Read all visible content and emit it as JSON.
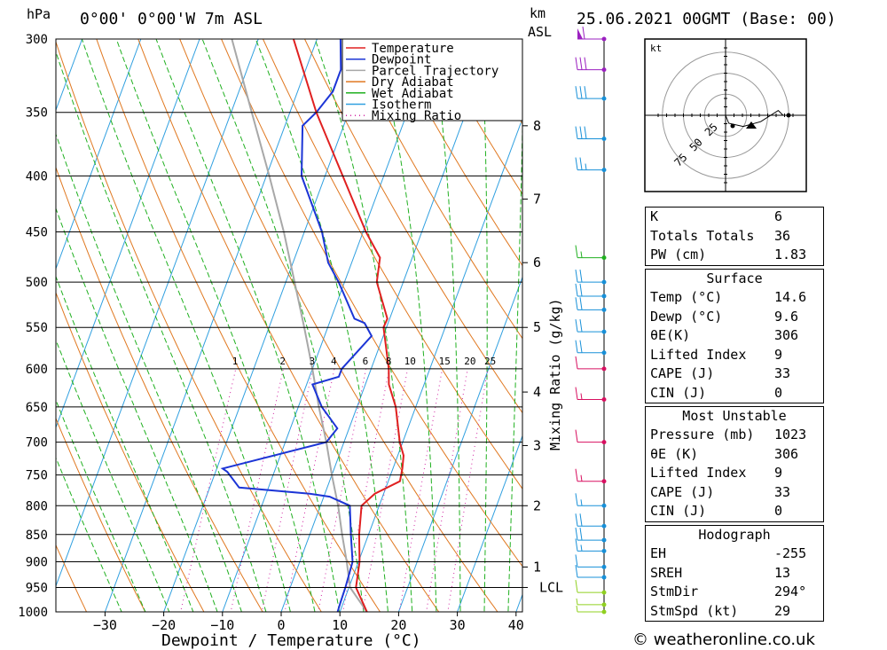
{
  "header": {
    "location": "0°00' 0°00'W 7m ASL",
    "datetime": "25.06.2021 00GMT (Base: 00)",
    "p_unit": "hPa",
    "km_unit": "km",
    "asl_label": "ASL"
  },
  "chart_data": {
    "type": "line",
    "title": "0°00' 0°00'W 7m ASL",
    "xlabel": "Dewpoint / Temperature (°C)",
    "ylabel": "hPa",
    "mixing_ratio_label": "Mixing Ratio (g/kg)",
    "xlim": [
      -40,
      40
    ],
    "ylim": [
      1000,
      300
    ],
    "y_scale": "log",
    "x_ticks": [
      "-30",
      "-20",
      "-10",
      "0",
      "10",
      "20",
      "30",
      "40"
    ],
    "p_ticks": [
      "300",
      "350",
      "400",
      "450",
      "500",
      "550",
      "600",
      "650",
      "700",
      "750",
      "800",
      "850",
      "900",
      "950",
      "1000"
    ],
    "km_ticks": [
      {
        "label": "8",
        "p": 360
      },
      {
        "label": "7",
        "p": 420
      },
      {
        "label": "6",
        "p": 480
      },
      {
        "label": "5",
        "p": 550
      },
      {
        "label": "4",
        "p": 630
      },
      {
        "label": "3",
        "p": 705
      },
      {
        "label": "2",
        "p": 800
      },
      {
        "label": "1",
        "p": 910
      },
      {
        "label": "LCL",
        "p": 950
      }
    ],
    "mixing_ratio_values": [
      "1",
      "2",
      "3",
      "4",
      "6",
      "8",
      "10",
      "15",
      "20",
      "25"
    ],
    "legend": [
      "Temperature",
      "Dewpoint",
      "Parcel Trajectory",
      "Dry Adiabat",
      "Wet Adiabat",
      "Isotherm",
      "Mixing Ratio"
    ],
    "legend_placement": "top-right",
    "colors": {
      "temperature": "#e02020",
      "dewpoint": "#1c35d6",
      "parcel": "#a8a8a8",
      "dry_adiabat": "#e07820",
      "wet_adiabat": "#20b020",
      "isotherm": "#30a0e0",
      "mixing_ratio": "#d020a0"
    },
    "series": [
      {
        "name": "Temperature",
        "points": [
          [
            1000,
            14.6
          ],
          [
            950,
            11.2
          ],
          [
            900,
            10.2
          ],
          [
            850,
            8.4
          ],
          [
            800,
            7.0
          ],
          [
            780,
            8.5
          ],
          [
            760,
            12.0
          ],
          [
            740,
            11.6
          ],
          [
            720,
            11.0
          ],
          [
            700,
            9.5
          ],
          [
            650,
            6.6
          ],
          [
            620,
            4.0
          ],
          [
            600,
            3.0
          ],
          [
            550,
            -0.5
          ],
          [
            540,
            -0.4
          ],
          [
            500,
            -4.5
          ],
          [
            475,
            -5.5
          ],
          [
            450,
            -9.5
          ],
          [
            400,
            -17.0
          ],
          [
            350,
            -25.5
          ],
          [
            300,
            -34.0
          ]
        ]
      },
      {
        "name": "Dewpoint",
        "points": [
          [
            1000,
            9.6
          ],
          [
            980,
            9.5
          ],
          [
            950,
            9.4
          ],
          [
            900,
            9.0
          ],
          [
            850,
            7.0
          ],
          [
            800,
            5.0
          ],
          [
            785,
            1.0
          ],
          [
            780,
            -2.6
          ],
          [
            770,
            -15.0
          ],
          [
            745,
            -18.0
          ],
          [
            740,
            -19.0
          ],
          [
            700,
            -3.0
          ],
          [
            680,
            -2.0
          ],
          [
            650,
            -6.0
          ],
          [
            620,
            -9.0
          ],
          [
            610,
            -5.0
          ],
          [
            600,
            -5.0
          ],
          [
            560,
            -2.0
          ],
          [
            545,
            -4.0
          ],
          [
            540,
            -6.0
          ],
          [
            500,
            -11.0
          ],
          [
            480,
            -14.0
          ],
          [
            450,
            -17.0
          ],
          [
            400,
            -24.0
          ],
          [
            360,
            -27.0
          ],
          [
            350,
            -25.5
          ],
          [
            335,
            -24.0
          ],
          [
            320,
            -24.0
          ],
          [
            300,
            -26.0
          ]
        ]
      },
      {
        "name": "Parcel Trajectory",
        "points": [
          [
            1000,
            14.6
          ],
          [
            950,
            10.2
          ],
          [
            900,
            8.0
          ],
          [
            850,
            5.5
          ],
          [
            800,
            3.0
          ],
          [
            750,
            0.0
          ],
          [
            700,
            -3.0
          ],
          [
            650,
            -6.5
          ],
          [
            600,
            -10.0
          ],
          [
            550,
            -14.0
          ],
          [
            500,
            -18.5
          ],
          [
            450,
            -23.5
          ],
          [
            400,
            -29.5
          ],
          [
            350,
            -36.5
          ],
          [
            300,
            -44.5
          ]
        ]
      }
    ],
    "wind_barbs": [
      {
        "p": 300,
        "speed_kt": 60
      },
      {
        "p": 320,
        "speed_kt": 30
      },
      {
        "p": 340,
        "speed_kt": 30
      },
      {
        "p": 370,
        "speed_kt": 30
      },
      {
        "p": 395,
        "speed_kt": 25
      },
      {
        "p": 475,
        "speed_kt": 15
      },
      {
        "p": 500,
        "speed_kt": 20
      },
      {
        "p": 515,
        "speed_kt": 20
      },
      {
        "p": 530,
        "speed_kt": 20
      },
      {
        "p": 555,
        "speed_kt": 20
      },
      {
        "p": 580,
        "speed_kt": 20
      },
      {
        "p": 600,
        "speed_kt": 10
      },
      {
        "p": 640,
        "speed_kt": 15
      },
      {
        "p": 700,
        "speed_kt": 10
      },
      {
        "p": 760,
        "speed_kt": 15
      },
      {
        "p": 800,
        "speed_kt": 15
      },
      {
        "p": 835,
        "speed_kt": 20
      },
      {
        "p": 860,
        "speed_kt": 20
      },
      {
        "p": 880,
        "speed_kt": 15
      },
      {
        "p": 910,
        "speed_kt": 10
      },
      {
        "p": 930,
        "speed_kt": 10
      },
      {
        "p": 960,
        "speed_kt": 10
      },
      {
        "p": 985,
        "speed_kt": 5
      },
      {
        "p": 1000,
        "speed_kt": 5
      }
    ],
    "hodograph": {
      "unit_label": "kt",
      "rings": [
        "25",
        "50",
        "75"
      ],
      "points": [
        [
          0,
          0
        ],
        [
          2,
          -5
        ],
        [
          11,
          -7
        ],
        [
          22,
          -4
        ],
        [
          33,
          3
        ],
        [
          36,
          0
        ],
        [
          39,
          0
        ]
      ]
    }
  },
  "stats_general": {
    "rows": [
      {
        "label": "K",
        "value": "6"
      },
      {
        "label": "Totals Totals",
        "value": "36"
      },
      {
        "label": "PW (cm)",
        "value": "1.83"
      }
    ]
  },
  "stats_surface": {
    "title": "Surface",
    "rows": [
      {
        "label": "Temp (°C)",
        "value": "14.6"
      },
      {
        "label": "Dewp (°C)",
        "value": "9.6"
      },
      {
        "label": "θE(K)",
        "value": "306"
      },
      {
        "label": "Lifted Index",
        "value": "9"
      },
      {
        "label": "CAPE (J)",
        "value": "33"
      },
      {
        "label": "CIN (J)",
        "value": "0"
      }
    ]
  },
  "stats_unstable": {
    "title": "Most Unstable",
    "rows": [
      {
        "label": "Pressure (mb)",
        "value": "1023"
      },
      {
        "label": "θE (K)",
        "value": "306"
      },
      {
        "label": "Lifted Index",
        "value": "9"
      },
      {
        "label": "CAPE (J)",
        "value": "33"
      },
      {
        "label": "CIN (J)",
        "value": "0"
      }
    ]
  },
  "stats_hodograph": {
    "title": "Hodograph",
    "rows": [
      {
        "label": "EH",
        "value": "-255"
      },
      {
        "label": "SREH",
        "value": "13"
      },
      {
        "label": "StmDir",
        "value": "294°"
      },
      {
        "label": "StmSpd (kt)",
        "value": "29"
      }
    ]
  },
  "footer": {
    "copyright": "© weatheronline.co.uk"
  }
}
